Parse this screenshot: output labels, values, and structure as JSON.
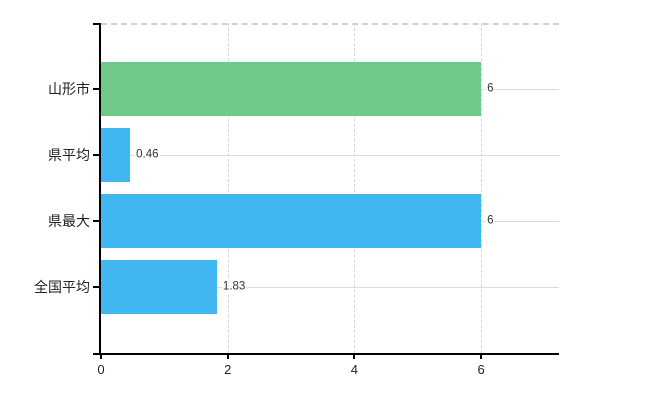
{
  "chart_data": {
    "type": "bar",
    "orientation": "horizontal",
    "title": "",
    "xlabel": "",
    "ylabel": "",
    "categories": [
      "山形市",
      "県平均",
      "県最大",
      "全国平均"
    ],
    "values": [
      6,
      0.46,
      6,
      1.83
    ],
    "value_labels": [
      "6",
      "0.46",
      "6",
      "1.83"
    ],
    "bar_colors": [
      "#6eca86",
      "#41b6f0",
      "#41b6f0",
      "#41b6f0"
    ],
    "x_tick_values": [
      0,
      2,
      4,
      6
    ],
    "x_tick_labels": [
      "0",
      "2",
      "4",
      "6"
    ],
    "xlim": [
      0,
      7.23
    ],
    "grid": true,
    "legend_position": "none"
  },
  "colors": {
    "background": "#ffffff",
    "axis": "#000000",
    "vertical_gridline": "#d6d6d6",
    "horizontal_gridline": "#d7ddd7",
    "top_border": "#d0d0d0",
    "category_text": "#222222",
    "value_text": "#333333",
    "green_bar": "#6eca86",
    "blue_bar": "#41b6f0"
  }
}
